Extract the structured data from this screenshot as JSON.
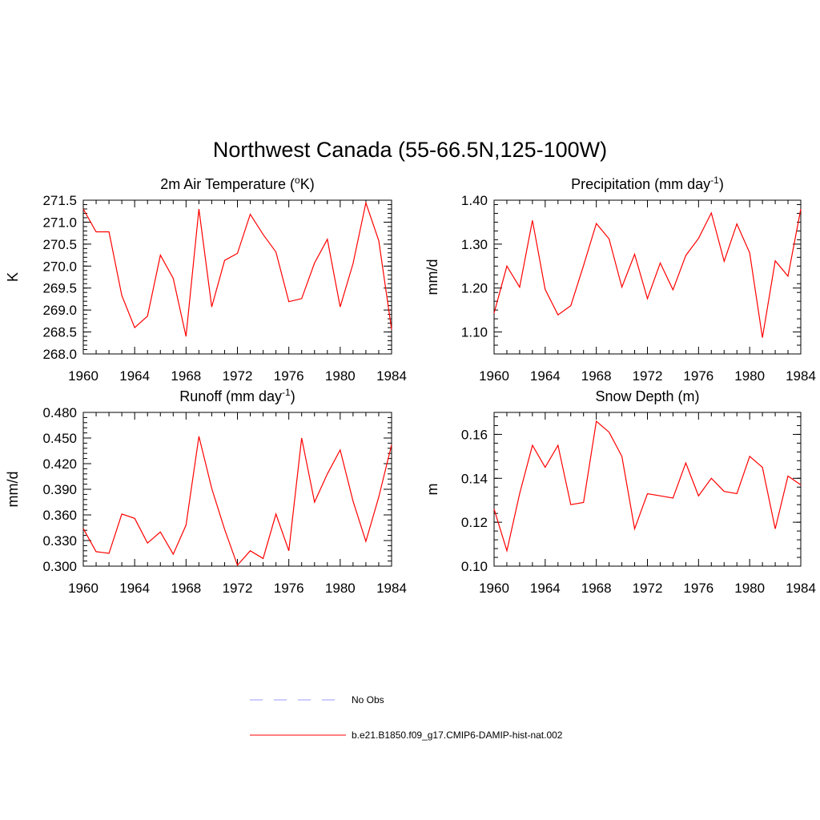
{
  "figure": {
    "title": "Northwest Canada (55-66.5N,125-100W)"
  },
  "legend": {
    "placement": "bottom-center",
    "items": [
      {
        "label": "No Obs",
        "color": "#9b9bff",
        "dashed": true
      },
      {
        "label": "b.e21.B1850.f09_g17.CMIP6-DAMIP-hist-nat.002",
        "color": "#ff0000",
        "dashed": false
      }
    ]
  },
  "chart_data": [
    {
      "type": "line",
      "title": "2m Air Temperature (",
      "title_sup": "o",
      "title_tail": "K)",
      "ylabel": "K",
      "xlim": [
        1960,
        1984
      ],
      "ylim": [
        268.0,
        271.5
      ],
      "xticks": [
        1960,
        1964,
        1968,
        1972,
        1976,
        1980,
        1984
      ],
      "yticks": [
        "268.0",
        "268.5",
        "269.0",
        "269.5",
        "270.0",
        "270.5",
        "271.0",
        "271.5"
      ],
      "color": "#ff0000",
      "series": [
        {
          "x": [
            1960,
            1961,
            1962,
            1963,
            1964,
            1965,
            1966,
            1967,
            1968,
            1969,
            1970,
            1971,
            1972,
            1973,
            1974,
            1975,
            1976,
            1977,
            1978,
            1979,
            1980,
            1981,
            1982,
            1983,
            1984
          ],
          "values": [
            271.3,
            270.78,
            270.78,
            269.33,
            268.6,
            268.86,
            270.25,
            269.72,
            268.4,
            271.3,
            269.07,
            270.13,
            270.29,
            271.18,
            270.72,
            270.32,
            269.19,
            269.26,
            270.07,
            270.61,
            269.07,
            270.06,
            271.44,
            270.58,
            268.56
          ]
        }
      ]
    },
    {
      "type": "line",
      "title": "Precipitation (mm day",
      "title_sup": "-1",
      "title_tail": ")",
      "ylabel": "mm/d",
      "xlim": [
        1960,
        1984
      ],
      "ylim": [
        1.05,
        1.4
      ],
      "xticks": [
        1960,
        1964,
        1968,
        1972,
        1976,
        1980,
        1984
      ],
      "yticks": [
        "1.10",
        "1.20",
        "1.30",
        "1.40"
      ],
      "color": "#ff0000",
      "series": [
        {
          "x": [
            1960,
            1961,
            1962,
            1963,
            1964,
            1965,
            1966,
            1967,
            1968,
            1969,
            1970,
            1971,
            1972,
            1973,
            1974,
            1975,
            1976,
            1977,
            1978,
            1979,
            1980,
            1981,
            1982,
            1983,
            1984
          ],
          "values": [
            1.143,
            1.25,
            1.202,
            1.354,
            1.197,
            1.139,
            1.16,
            1.251,
            1.347,
            1.312,
            1.202,
            1.277,
            1.176,
            1.257,
            1.196,
            1.274,
            1.313,
            1.371,
            1.261,
            1.346,
            1.28,
            1.087,
            1.262,
            1.227,
            1.38
          ]
        }
      ]
    },
    {
      "type": "line",
      "title": "Runoff (mm day",
      "title_sup": "-1",
      "title_tail": ")",
      "ylabel": "mm/d",
      "xlim": [
        1960,
        1984
      ],
      "ylim": [
        0.3,
        0.48
      ],
      "xticks": [
        1960,
        1964,
        1968,
        1972,
        1976,
        1980,
        1984
      ],
      "yticks": [
        "0.300",
        "0.330",
        "0.360",
        "0.390",
        "0.420",
        "0.450",
        "0.480"
      ],
      "color": "#ff0000",
      "series": [
        {
          "x": [
            1960,
            1961,
            1962,
            1963,
            1964,
            1965,
            1966,
            1967,
            1968,
            1969,
            1970,
            1971,
            1972,
            1973,
            1974,
            1975,
            1976,
            1977,
            1978,
            1979,
            1980,
            1981,
            1982,
            1983,
            1984
          ],
          "values": [
            0.344,
            0.317,
            0.315,
            0.361,
            0.356,
            0.327,
            0.34,
            0.314,
            0.348,
            0.452,
            0.391,
            0.343,
            0.301,
            0.318,
            0.309,
            0.361,
            0.318,
            0.45,
            0.375,
            0.408,
            0.436,
            0.376,
            0.329,
            0.381,
            0.442
          ]
        }
      ]
    },
    {
      "type": "line",
      "title": "Snow Depth (m)",
      "title_sup": "",
      "title_tail": "",
      "ylabel": "m",
      "xlim": [
        1960,
        1984
      ],
      "ylim": [
        0.1,
        0.17
      ],
      "xticks": [
        1960,
        1964,
        1968,
        1972,
        1976,
        1980,
        1984
      ],
      "yticks": [
        "0.10",
        "0.12",
        "0.14",
        "0.16"
      ],
      "color": "#ff0000",
      "series": [
        {
          "x": [
            1960,
            1961,
            1962,
            1963,
            1964,
            1965,
            1966,
            1967,
            1968,
            1969,
            1970,
            1971,
            1972,
            1973,
            1974,
            1975,
            1976,
            1977,
            1978,
            1979,
            1980,
            1981,
            1982,
            1983,
            1984
          ],
          "values": [
            0.126,
            0.107,
            0.133,
            0.155,
            0.145,
            0.155,
            0.128,
            0.129,
            0.166,
            0.161,
            0.15,
            0.117,
            0.133,
            0.132,
            0.131,
            0.147,
            0.132,
            0.14,
            0.134,
            0.133,
            0.15,
            0.145,
            0.117,
            0.141,
            0.137
          ]
        }
      ]
    }
  ]
}
